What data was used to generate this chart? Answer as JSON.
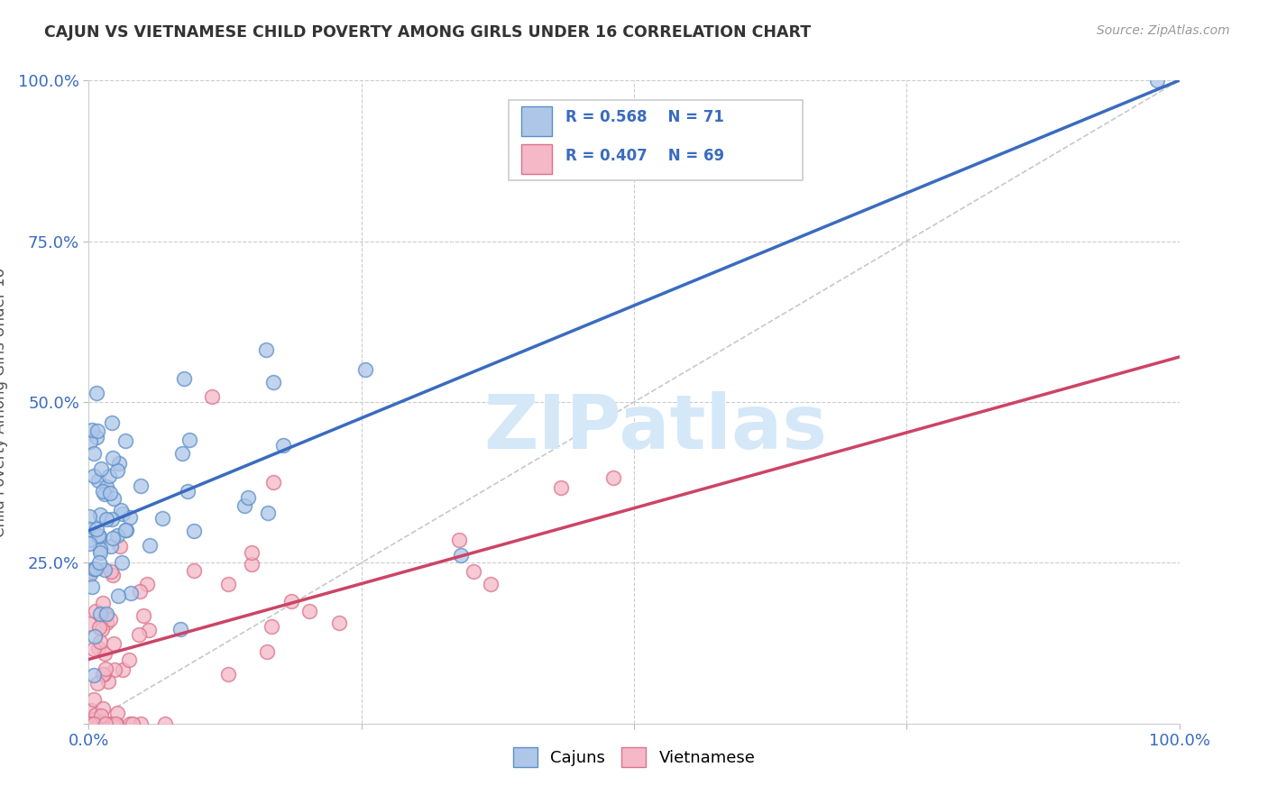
{
  "title": "CAJUN VS VIETNAMESE CHILD POVERTY AMONG GIRLS UNDER 16 CORRELATION CHART",
  "source": "Source: ZipAtlas.com",
  "ylabel": "Child Poverty Among Girls Under 16",
  "xlim": [
    0,
    1
  ],
  "ylim": [
    0,
    1
  ],
  "xtick_labels": [
    "0.0%",
    "",
    "",
    "",
    "100.0%"
  ],
  "ytick_labels": [
    "",
    "25.0%",
    "50.0%",
    "75.0%",
    "100.0%"
  ],
  "cajun_color": "#aec6e8",
  "cajun_edge": "#5b8fc9",
  "vietnamese_color": "#f4b8c8",
  "vietnamese_edge": "#d9748a",
  "cajun_line_color": "#3a6bbf",
  "vietnamese_line_color": "#cc4466",
  "diagonal_color": "#c8c8c8",
  "R_cajun": 0.568,
  "N_cajun": 71,
  "R_vietnamese": 0.407,
  "N_vietnamese": 69,
  "watermark": "ZIPatlas",
  "watermark_color": "#d4e8f8",
  "cajun_line_x0": 0.0,
  "cajun_line_y0": 0.3,
  "cajun_line_x1": 1.0,
  "cajun_line_y1": 1.0,
  "viet_line_x0": 0.0,
  "viet_line_y0": 0.1,
  "viet_line_x1": 1.0,
  "viet_line_y1": 0.57
}
